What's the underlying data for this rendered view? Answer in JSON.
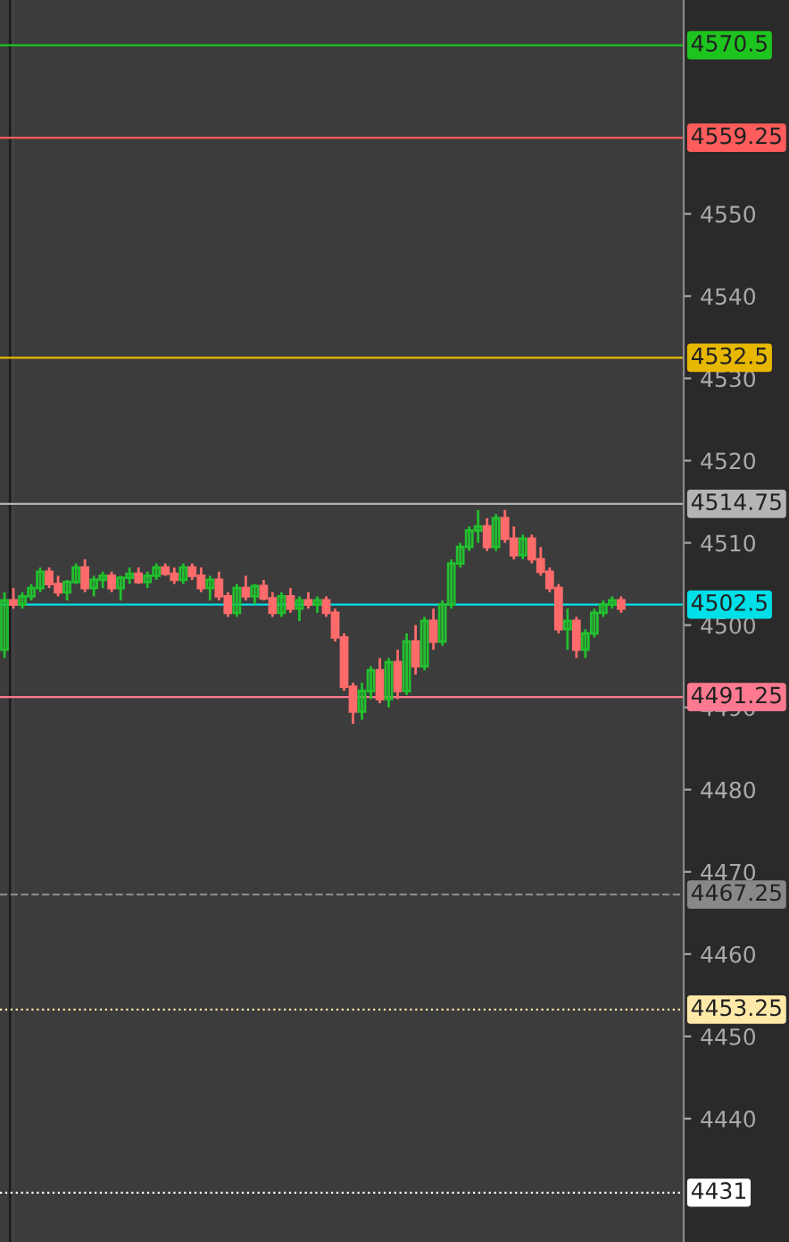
{
  "chart_data": {
    "type": "candlestick",
    "categories": [
      null,
      null,
      null,
      null,
      null,
      null,
      null,
      null,
      null,
      null,
      null,
      null,
      null,
      null,
      null,
      null,
      null,
      null,
      null,
      null,
      null,
      null,
      null,
      null,
      null,
      null,
      null,
      null,
      null,
      null,
      null,
      null,
      null,
      null,
      null,
      null,
      null,
      null,
      null,
      null,
      null,
      null,
      null,
      null,
      null,
      null,
      null,
      null,
      null,
      null,
      null,
      null,
      null,
      null,
      null,
      null,
      null,
      null,
      null,
      null,
      null,
      null,
      null,
      null,
      null,
      null,
      null,
      null,
      null,
      null
    ],
    "ohlc": [
      [
        4497,
        4504,
        4496,
        4503
      ],
      [
        4503,
        4504.5,
        4502,
        4502.5
      ],
      [
        4502.5,
        4504,
        4502,
        4503.5
      ],
      [
        4503.5,
        4505,
        4503,
        4504.5
      ],
      [
        4504.5,
        4507,
        4504,
        4506.5
      ],
      [
        4506.5,
        4507,
        4504.5,
        4505
      ],
      [
        4505,
        4506,
        4503.5,
        4504
      ],
      [
        4504,
        4505.5,
        4503,
        4505.25
      ],
      [
        4505.25,
        4507.5,
        4505,
        4507
      ],
      [
        4507,
        4508,
        4504,
        4504.5
      ],
      [
        4504.5,
        4506,
        4503.5,
        4505.5
      ],
      [
        4505.5,
        4506.5,
        4504.5,
        4506
      ],
      [
        4506,
        4506.5,
        4504,
        4504.5
      ],
      [
        4504.5,
        4506,
        4503,
        4505.75
      ],
      [
        4505.75,
        4507,
        4505,
        4506.25
      ],
      [
        4506.25,
        4507,
        4505,
        4505.25
      ],
      [
        4505.25,
        4506.5,
        4504.5,
        4506
      ],
      [
        4506,
        4507.5,
        4505.5,
        4507
      ],
      [
        4507,
        4507.5,
        4506,
        4506.25
      ],
      [
        4506.25,
        4507,
        4505,
        4505.5
      ],
      [
        4505.5,
        4507.5,
        4505,
        4507
      ],
      [
        4507,
        4507.5,
        4505.5,
        4506
      ],
      [
        4506,
        4507,
        4504,
        4504.5
      ],
      [
        4504.5,
        4506,
        4503,
        4505.5
      ],
      [
        4505.5,
        4506.5,
        4503,
        4503.5
      ],
      [
        4503.5,
        4504,
        4501,
        4501.5
      ],
      [
        4501.5,
        4505,
        4501,
        4504.5
      ],
      [
        4504.5,
        4506,
        4503,
        4503.5
      ],
      [
        4503.5,
        4505,
        4502.5,
        4504.75
      ],
      [
        4504.75,
        4505.5,
        4503,
        4503.25
      ],
      [
        4503.25,
        4504,
        4501,
        4501.5
      ],
      [
        4501.5,
        4504,
        4501,
        4503.5
      ],
      [
        4503.5,
        4504.5,
        4501.5,
        4502
      ],
      [
        4502,
        4503.5,
        4500.5,
        4503
      ],
      [
        4503,
        4504,
        4502,
        4502.5
      ],
      [
        4502.5,
        4503.5,
        4501.5,
        4503
      ],
      [
        4503,
        4503.5,
        4501,
        4501.5
      ],
      [
        4501.5,
        4502,
        4498,
        4498.5
      ],
      [
        4498.5,
        4499,
        4492,
        4492.5
      ],
      [
        4492.5,
        4493,
        4488,
        4489.5
      ],
      [
        4489.5,
        4493,
        4488.5,
        4492
      ],
      [
        4492,
        4495,
        4491,
        4494.5
      ],
      [
        4494.5,
        4496,
        4490.5,
        4491
      ],
      [
        4491,
        4496,
        4490,
        4495.5
      ],
      [
        4495.5,
        4497,
        4491,
        4492
      ],
      [
        4492,
        4499,
        4491.5,
        4498
      ],
      [
        4498,
        4500,
        4494,
        4495
      ],
      [
        4495,
        4501,
        4494.5,
        4500.5
      ],
      [
        4500.5,
        4502,
        4497,
        4498
      ],
      [
        4498,
        4503,
        4497.5,
        4502.5
      ],
      [
        4502.5,
        4508,
        4502,
        4507.5
      ],
      [
        4507.5,
        4510,
        4507,
        4509.5
      ],
      [
        4509.5,
        4512,
        4509,
        4511.5
      ],
      [
        4511.5,
        4514,
        4510,
        4512
      ],
      [
        4512,
        4513,
        4509,
        4509.5
      ],
      [
        4509.5,
        4513.5,
        4509,
        4513
      ],
      [
        4513,
        4514,
        4510,
        4510.5
      ],
      [
        4510.5,
        4512,
        4508,
        4508.5
      ],
      [
        4508.5,
        4511,
        4508,
        4510.5
      ],
      [
        4510.5,
        4511,
        4507.5,
        4508
      ],
      [
        4508,
        4509.5,
        4506,
        4506.5
      ],
      [
        4506.5,
        4507,
        4504,
        4504.5
      ],
      [
        4504.5,
        4505,
        4499,
        4499.5
      ],
      [
        4499.5,
        4502,
        4497,
        4500.5
      ],
      [
        4500.5,
        4501,
        4496,
        4497
      ],
      [
        4497,
        4499.5,
        4496,
        4499
      ],
      [
        4499,
        4502,
        4498.5,
        4501.5
      ],
      [
        4501.5,
        4503,
        4501,
        4502.5
      ],
      [
        4502.5,
        4503.5,
        4502,
        4503
      ],
      [
        4503,
        4503.5,
        4501.5,
        4502
      ]
    ],
    "colors": [
      "#22c02e",
      "#ff6b6b",
      "#22c02e",
      "#22c02e",
      "#22c02e",
      "#ff6b6b",
      "#ff6b6b",
      "#22c02e",
      "#22c02e",
      "#ff6b6b",
      "#22c02e",
      "#22c02e",
      "#ff6b6b",
      "#22c02e",
      "#22c02e",
      "#ff6b6b",
      "#22c02e",
      "#22c02e",
      "#ff6b6b",
      "#ff6b6b",
      "#22c02e",
      "#ff6b6b",
      "#ff6b6b",
      "#22c02e",
      "#ff6b6b",
      "#ff6b6b",
      "#22c02e",
      "#ff6b6b",
      "#22c02e",
      "#ff6b6b",
      "#ff6b6b",
      "#22c02e",
      "#ff6b6b",
      "#22c02e",
      "#ff6b6b",
      "#22c02e",
      "#ff6b6b",
      "#ff6b6b",
      "#ff6b6b",
      "#ff6b6b",
      "#22c02e",
      "#22c02e",
      "#ff6b6b",
      "#22c02e",
      "#ff6b6b",
      "#22c02e",
      "#ff6b6b",
      "#22c02e",
      "#ff6b6b",
      "#22c02e",
      "#22c02e",
      "#22c02e",
      "#22c02e",
      "#22c02e",
      "#ff6b6b",
      "#22c02e",
      "#ff6b6b",
      "#ff6b6b",
      "#22c02e",
      "#ff6b6b",
      "#ff6b6b",
      "#ff6b6b",
      "#ff6b6b",
      "#22c02e",
      "#ff6b6b",
      "#22c02e",
      "#22c02e",
      "#22c02e",
      "#22c02e",
      "#ff6b6b"
    ],
    "ylim": [
      4425,
      4576
    ],
    "yticks": [
      4440,
      4450,
      4460,
      4470,
      4480,
      4490,
      4500,
      4510,
      4520,
      4530,
      4540,
      4550
    ],
    "tick_labels": "y",
    "grid": false,
    "ref_lines": [
      {
        "axis": "y",
        "value": 4570.5,
        "label": "4570.5",
        "color": "#1ec41e",
        "line_style": "solid"
      },
      {
        "axis": "y",
        "value": 4559.25,
        "label": "4559.25",
        "color": "#ff5c5c",
        "line_style": "solid"
      },
      {
        "axis": "y",
        "value": 4532.5,
        "label": "4532.5",
        "color": "#e8b800",
        "line_style": "solid"
      },
      {
        "axis": "y",
        "value": 4514.75,
        "label": "4514.75",
        "color": "#b4b4b4",
        "line_style": "solid"
      },
      {
        "axis": "y",
        "value": 4502.5,
        "label": "4502.5",
        "color": "#00e0e8",
        "line_style": "solid"
      },
      {
        "axis": "y",
        "value": 4491.25,
        "label": "4491.25",
        "color": "#ff7a90",
        "line_style": "solid"
      },
      {
        "axis": "y",
        "value": 4467.25,
        "label": "4467.25",
        "color": "#888888",
        "line_style": "dashed"
      },
      {
        "axis": "y",
        "value": 4453.25,
        "label": "4453.25",
        "color": "#ffe9a8",
        "line_style": "dotted"
      },
      {
        "axis": "y",
        "value": 4431,
        "label": "4431",
        "color": "#ffffff",
        "line_style": "dotted"
      }
    ]
  }
}
